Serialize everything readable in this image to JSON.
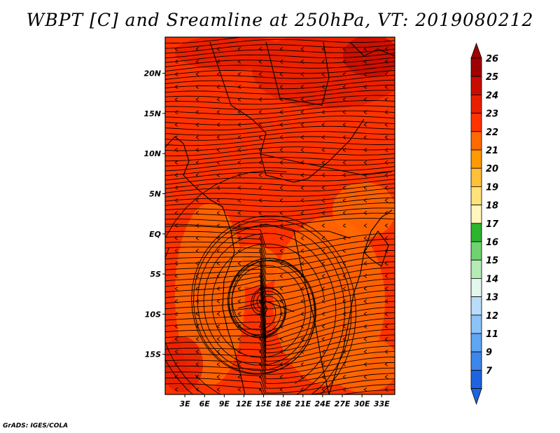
{
  "title": "WBPT [C] and Sreamline at 250hPa, VT: 2019080212",
  "credit": "GrADS: IGES/COLA",
  "map": {
    "lon_range": [
      0,
      35
    ],
    "lat_range": [
      -20,
      24.5
    ],
    "y_ticks": [
      {
        "lat": 20,
        "label": "20N"
      },
      {
        "lat": 15,
        "label": "15N"
      },
      {
        "lat": 10,
        "label": "10N"
      },
      {
        "lat": 5,
        "label": "5N"
      },
      {
        "lat": 0,
        "label": "EQ"
      },
      {
        "lat": -5,
        "label": "5S"
      },
      {
        "lat": -10,
        "label": "10S"
      },
      {
        "lat": -15,
        "label": "15S"
      }
    ],
    "x_ticks": [
      {
        "lon": 3,
        "label": "3E"
      },
      {
        "lon": 6,
        "label": "6E"
      },
      {
        "lon": 9,
        "label": "9E"
      },
      {
        "lon": 12,
        "label": "12E"
      },
      {
        "lon": 15,
        "label": "15E"
      },
      {
        "lon": 18,
        "label": "18E"
      },
      {
        "lon": 21,
        "label": "21E"
      },
      {
        "lon": 24,
        "label": "24E"
      },
      {
        "lon": 27,
        "label": "27E"
      },
      {
        "lon": 30,
        "label": "30E"
      },
      {
        "lon": 33,
        "label": "33E"
      }
    ],
    "vortex_center": {
      "lon": 15,
      "lat": -9
    },
    "field_colors": {
      "c23": "#ff3300",
      "c22": "#ff6a00",
      "c24": "#e81e00",
      "c25": "#c80d00"
    }
  },
  "colorbar": {
    "levels": [
      "26",
      "25",
      "24",
      "23",
      "22",
      "21",
      "20",
      "19",
      "18",
      "17",
      "16",
      "15",
      "14",
      "13",
      "12",
      "11",
      "9",
      "7"
    ],
    "colors": [
      "#a00000",
      "#c80d00",
      "#e81e00",
      "#ff3300",
      "#ff6a00",
      "#ff9a00",
      "#ffc03a",
      "#ffe27a",
      "#fff7bb",
      "#2db52d",
      "#6fd46f",
      "#b4ecb4",
      "#e2f7ee",
      "#b9dcfa",
      "#8cc3f8",
      "#5fa6f3",
      "#3c86ec",
      "#1e64e0"
    ],
    "top_color": "#a00000",
    "bottom_color": "#1e64e0"
  }
}
